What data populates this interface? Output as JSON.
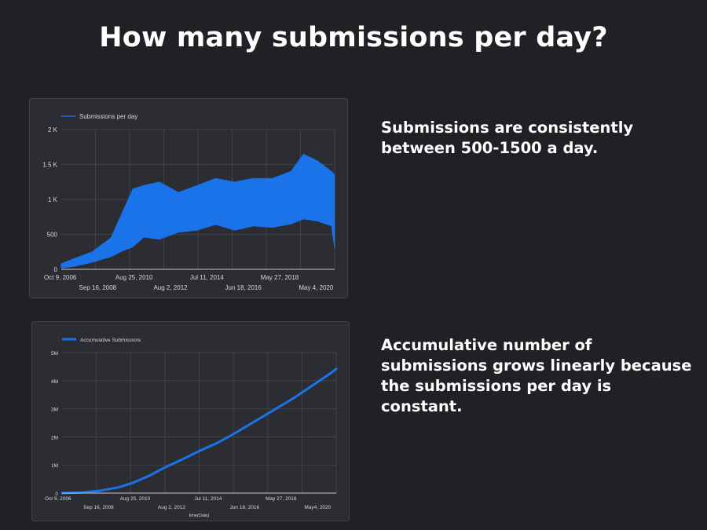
{
  "slide": {
    "title": "How many submissions per day?",
    "note_daily": "Submissions are consistently between 500-1500 a day.",
    "note_cumulative": "Accumulative number of submissions grows linearly because the submissions per day is constant."
  },
  "chart_data": [
    {
      "type": "area",
      "legend": "Submissions per day",
      "legend_position": "top-left",
      "color": "#1a73e8",
      "grid": true,
      "x_range": [
        "2006-10-09",
        "2021-04-30"
      ],
      "ylim": [
        0,
        2000
      ],
      "y_ticks": [
        {
          "v": 0,
          "label": "0"
        },
        {
          "v": 500,
          "label": "500"
        },
        {
          "v": 1000,
          "label": "1 K"
        },
        {
          "v": 1500,
          "label": "1.5 K"
        },
        {
          "v": 2000,
          "label": "2 K"
        }
      ],
      "x_ticks_row1": [
        {
          "date": "2006-10-09",
          "label": "Oct 9, 2006"
        },
        {
          "date": "2010-08-25",
          "label": "Aug 25, 2010"
        },
        {
          "date": "2014-07-11",
          "label": "Jul 11, 2014"
        },
        {
          "date": "2018-05-27",
          "label": "May 27, 2018"
        }
      ],
      "x_ticks_row2": [
        {
          "date": "2008-09-16",
          "label": "Sep 16, 2008"
        },
        {
          "date": "2012-08-02",
          "label": "Aug 2, 2012"
        },
        {
          "date": "2016-06-18",
          "label": "Jun 18, 2016"
        },
        {
          "date": "2020-05-04",
          "label": "May 4, 2020"
        }
      ],
      "envelope_low": [
        [
          "2006-10-09",
          20
        ],
        [
          "2007-06-01",
          40
        ],
        [
          "2008-06-01",
          100
        ],
        [
          "2009-06-01",
          180
        ],
        [
          "2010-01-01",
          260
        ],
        [
          "2010-08-01",
          320
        ],
        [
          "2011-03-01",
          460
        ],
        [
          "2012-01-01",
          430
        ],
        [
          "2013-01-01",
          530
        ],
        [
          "2014-01-01",
          560
        ],
        [
          "2015-01-01",
          640
        ],
        [
          "2016-01-01",
          560
        ],
        [
          "2017-01-01",
          620
        ],
        [
          "2018-01-01",
          600
        ],
        [
          "2019-01-01",
          650
        ],
        [
          "2019-09-01",
          720
        ],
        [
          "2020-06-01",
          690
        ],
        [
          "2021-03-01",
          620
        ],
        [
          "2021-04-30",
          300
        ]
      ],
      "envelope_high": [
        [
          "2006-10-09",
          80
        ],
        [
          "2007-06-01",
          150
        ],
        [
          "2008-06-01",
          250
        ],
        [
          "2009-06-01",
          450
        ],
        [
          "2010-01-01",
          800
        ],
        [
          "2010-08-01",
          1150
        ],
        [
          "2011-03-01",
          1200
        ],
        [
          "2012-01-01",
          1250
        ],
        [
          "2013-01-01",
          1100
        ],
        [
          "2014-01-01",
          1200
        ],
        [
          "2015-01-01",
          1300
        ],
        [
          "2016-01-01",
          1250
        ],
        [
          "2017-01-01",
          1300
        ],
        [
          "2018-01-01",
          1300
        ],
        [
          "2019-01-01",
          1400
        ],
        [
          "2019-09-01",
          1650
        ],
        [
          "2020-06-01",
          1550
        ],
        [
          "2021-03-01",
          1400
        ],
        [
          "2021-04-30",
          1350
        ]
      ]
    },
    {
      "type": "line",
      "legend": "Accumulative Submissions",
      "legend_position": "top-left",
      "color": "#1a73e8",
      "grid": true,
      "xlabel": "time(Date)",
      "x_range": [
        "2006-10-09",
        "2021-04-30"
      ],
      "ylim": [
        0,
        5000000
      ],
      "y_ticks": [
        {
          "v": 0,
          "label": "0"
        },
        {
          "v": 1000000,
          "label": "1M"
        },
        {
          "v": 2000000,
          "label": "2M"
        },
        {
          "v": 3000000,
          "label": "3M"
        },
        {
          "v": 4000000,
          "label": "4M"
        },
        {
          "v": 5000000,
          "label": "5M"
        }
      ],
      "x_ticks_row1": [
        {
          "date": "2006-10-09",
          "label": "Oct 9, 2006"
        },
        {
          "date": "2010-08-25",
          "label": "Aug 25, 2010"
        },
        {
          "date": "2014-07-11",
          "label": "Jul 11, 2014"
        },
        {
          "date": "2018-05-27",
          "label": "May 27, 2018"
        }
      ],
      "x_ticks_row2": [
        {
          "date": "2008-09-16",
          "label": "Sep 16, 2008"
        },
        {
          "date": "2012-08-02",
          "label": "Aug 2, 2012"
        },
        {
          "date": "2016-06-18",
          "label": "Jun 18, 2016"
        },
        {
          "date": "2020-05-04",
          "label": "May4, 2020"
        }
      ],
      "points": [
        [
          "2006-10-09",
          0
        ],
        [
          "2007-10-01",
          20000
        ],
        [
          "2008-10-01",
          80000
        ],
        [
          "2009-10-01",
          200000
        ],
        [
          "2010-08-01",
          380000
        ],
        [
          "2011-06-01",
          620000
        ],
        [
          "2012-04-01",
          920000
        ],
        [
          "2013-01-01",
          1150000
        ],
        [
          "2014-01-01",
          1480000
        ],
        [
          "2015-01-01",
          1780000
        ],
        [
          "2016-01-01",
          2150000
        ],
        [
          "2017-01-01",
          2550000
        ],
        [
          "2018-01-01",
          2950000
        ],
        [
          "2019-01-01",
          3350000
        ],
        [
          "2020-01-01",
          3800000
        ],
        [
          "2021-01-01",
          4250000
        ],
        [
          "2021-04-30",
          4420000
        ]
      ]
    }
  ]
}
